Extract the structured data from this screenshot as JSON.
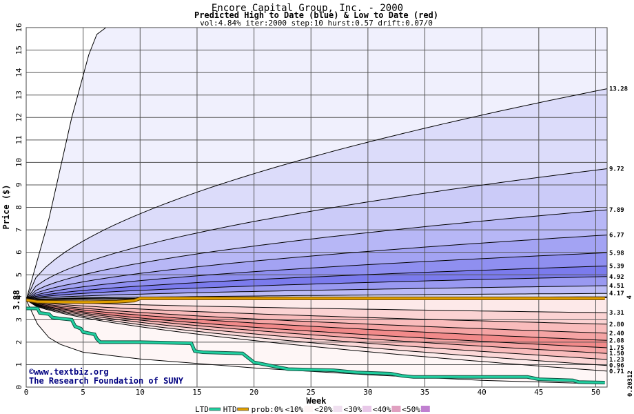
{
  "chart_data": {
    "type": "area",
    "title": "Encore Capital Group, Inc. - 2000",
    "subtitle": "Predicted High to Date (blue) &  Low to Date (red)",
    "params": "vol:4.84% iter:2000 step:10 hurst:0.57 drift:0.07/0",
    "xlabel": "Week",
    "ylabel": "Price ($)",
    "xlim": [
      0,
      51
    ],
    "ylim": [
      0,
      16
    ],
    "xticks": [
      0,
      5,
      10,
      15,
      20,
      25,
      30,
      35,
      40,
      45,
      50
    ],
    "yticks": [
      0,
      1,
      2,
      3,
      4,
      5,
      6,
      7,
      8,
      9,
      10,
      11,
      12,
      13,
      14,
      15,
      16
    ],
    "start_price": 3.88,
    "start_label": "3.88",
    "grid": true,
    "high_percentile_curves": [
      {
        "end": 13.28,
        "label": "13.28"
      },
      {
        "end": 9.72,
        "label": "9.72"
      },
      {
        "end": 7.89,
        "label": "7.89"
      },
      {
        "end": 6.77,
        "label": "6.77"
      },
      {
        "end": 5.98,
        "label": "5.98"
      },
      {
        "end": 5.39,
        "label": "5.39"
      },
      {
        "end": 4.92,
        "label": "4.92"
      },
      {
        "end": 4.51,
        "label": "4.51"
      },
      {
        "end": 4.17,
        "label": "4.17"
      }
    ],
    "low_percentile_curves": [
      {
        "end": 3.31,
        "label": "3.31"
      },
      {
        "end": 2.8,
        "label": "2.80"
      },
      {
        "end": 2.4,
        "label": "2.40"
      },
      {
        "end": 2.08,
        "label": "2.08"
      },
      {
        "end": 1.75,
        "label": "1.75"
      },
      {
        "end": 1.5,
        "label": "1.50"
      },
      {
        "end": 1.23,
        "label": "1.23"
      },
      {
        "end": 0.96,
        "label": "0.96"
      },
      {
        "end": 0.71,
        "label": "0.71"
      }
    ],
    "prob_line": {
      "end": 4.0,
      "label": "4"
    },
    "outer_high_curve": [
      [
        0,
        3.88
      ],
      [
        2,
        7.5
      ],
      [
        4,
        12
      ],
      [
        5.5,
        14.8
      ],
      [
        6.2,
        15.7
      ],
      [
        7,
        16
      ]
    ],
    "outer_low_curve": [
      [
        0,
        3.88
      ],
      [
        1,
        2.8
      ],
      [
        2,
        2.2
      ],
      [
        3,
        1.9
      ],
      [
        5,
        1.55
      ],
      [
        10,
        1.25
      ],
      [
        20,
        0.85
      ],
      [
        30,
        0.55
      ],
      [
        40,
        0.3
      ],
      [
        50,
        0.15
      ]
    ],
    "htd_series": {
      "name": "HTD",
      "points": [
        [
          0,
          3.88
        ],
        [
          1,
          3.8
        ],
        [
          5,
          3.78
        ],
        [
          8,
          3.8
        ],
        [
          9.5,
          3.85
        ],
        [
          10,
          3.95
        ],
        [
          20,
          3.95
        ],
        [
          30,
          3.95
        ],
        [
          40,
          3.95
        ],
        [
          50.8,
          3.95
        ]
      ]
    },
    "ltd_series": {
      "name": "LTD",
      "end": 0.20312,
      "end_label": "0.20312",
      "points": [
        [
          0,
          3.5
        ],
        [
          1,
          3.5
        ],
        [
          1.2,
          3.3
        ],
        [
          2,
          3.25
        ],
        [
          2.3,
          3.1
        ],
        [
          3,
          3.05
        ],
        [
          4,
          3.0
        ],
        [
          4.3,
          2.7
        ],
        [
          4.8,
          2.6
        ],
        [
          5,
          2.45
        ],
        [
          5.5,
          2.4
        ],
        [
          6,
          2.35
        ],
        [
          6.2,
          2.15
        ],
        [
          6.5,
          2.0
        ],
        [
          10,
          2.0
        ],
        [
          14.5,
          1.95
        ],
        [
          14.8,
          1.6
        ],
        [
          15.5,
          1.55
        ],
        [
          19,
          1.5
        ],
        [
          19.5,
          1.3
        ],
        [
          20,
          1.1
        ],
        [
          21,
          1.0
        ],
        [
          22,
          0.9
        ],
        [
          23,
          0.8
        ],
        [
          27,
          0.75
        ],
        [
          29,
          0.65
        ],
        [
          32,
          0.6
        ],
        [
          33,
          0.5
        ],
        [
          34,
          0.45
        ],
        [
          44,
          0.45
        ],
        [
          45,
          0.35
        ],
        [
          48,
          0.3
        ],
        [
          48.5,
          0.22
        ],
        [
          50.8,
          0.2
        ]
      ]
    },
    "credit_lines": [
      "©www.textbiz.org",
      "The Research Foundation of SUNY"
    ],
    "legend": [
      {
        "label": "LTD",
        "kind": "line",
        "color": "#20d0a0"
      },
      {
        "label": "HTD",
        "kind": "line",
        "color": "#e0a000"
      },
      {
        "label": "prob:0%",
        "kind": "text"
      },
      {
        "label": "<10%",
        "kind": "swatch",
        "color": "#fdf6f6"
      },
      {
        "label": "<20%",
        "kind": "swatch",
        "color": "#f0e0f0"
      },
      {
        "label": "<30%",
        "kind": "swatch",
        "color": "#e8c8e8"
      },
      {
        "label": "<40%",
        "kind": "swatch",
        "color": "#e0a0c0"
      },
      {
        "label": "<50%",
        "kind": "swatch",
        "color": "#c080d0"
      }
    ],
    "colors": {
      "blue_bands": [
        "#f0f0fd",
        "#dcdcfa",
        "#cbcbf8",
        "#b7b7f6",
        "#a3a3f3",
        "#8f8ff0",
        "#7b7bed",
        "#9999f1",
        "#bbbbf6",
        "#dcdcfa"
      ],
      "red_bands": [
        "#fde9e9",
        "#fbd3d3",
        "#f9bcbc",
        "#f5a4a4",
        "#f28a8a",
        "#f5a4a4",
        "#f9bcbc",
        "#fcd8d8",
        "#fdecec",
        "#fef6f6"
      ],
      "grid": "#555555",
      "htd": "#e0a000",
      "ltd": "#20d0a0",
      "credit": "#000080"
    }
  }
}
